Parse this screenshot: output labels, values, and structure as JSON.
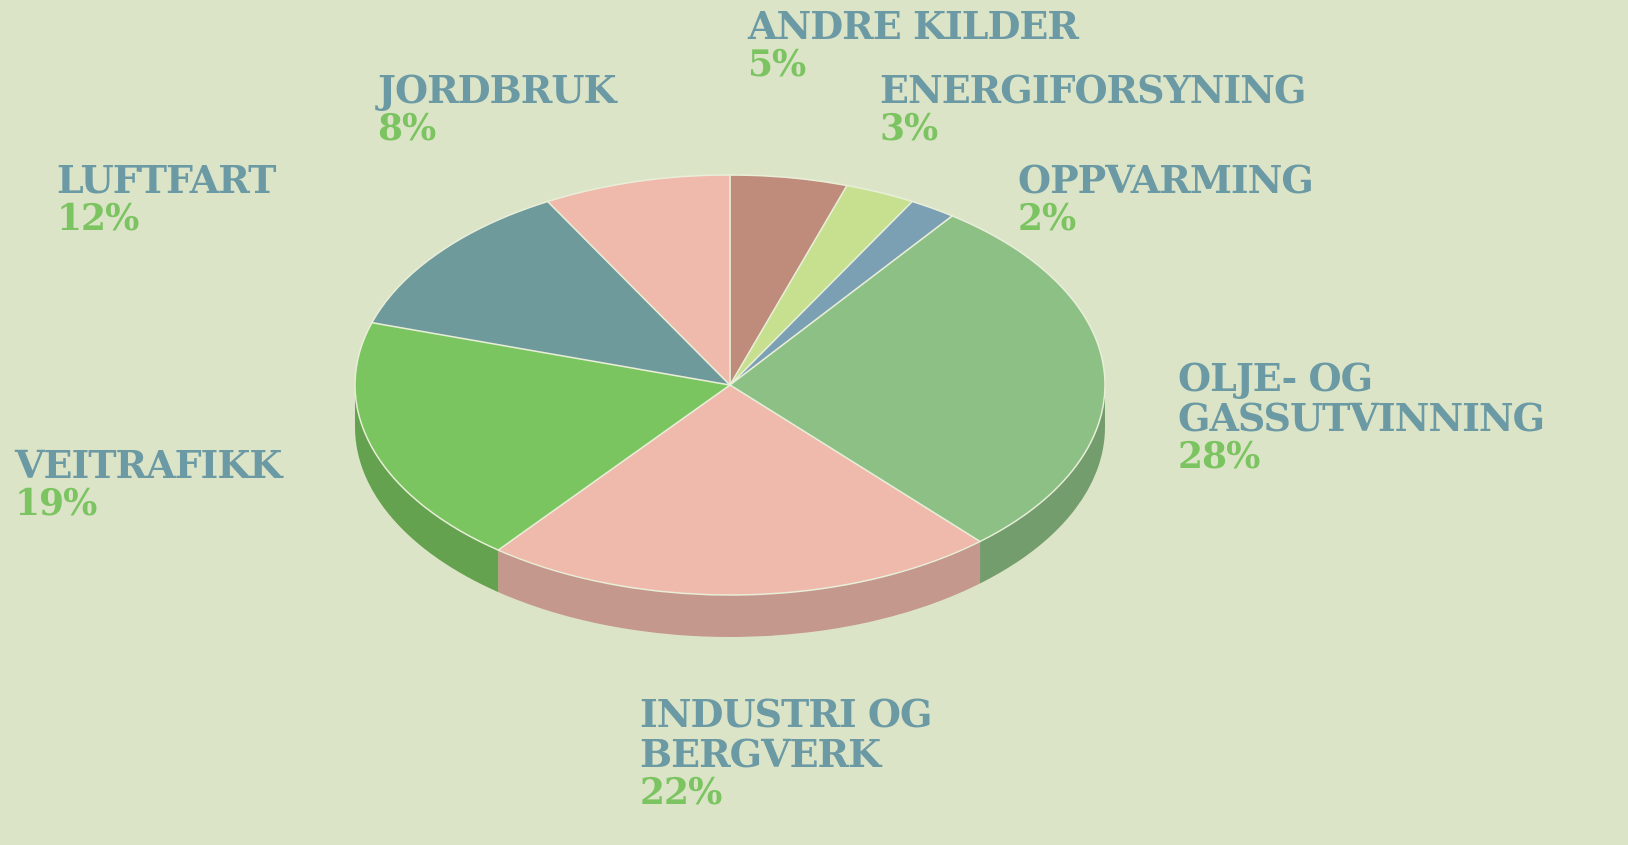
{
  "chart_data": {
    "type": "pie",
    "categories": [
      "ANDRE KILDER",
      "ENERGIFORSYNING",
      "OPPVARMING",
      "OLJE- OG\nGASSUTVINNING",
      "INDUSTRI OG\nBERGVERK",
      "VEITRAFIKK",
      "LUFTFART",
      "JORDBRUK"
    ],
    "values": [
      5,
      3,
      2,
      28,
      22,
      19,
      12,
      8
    ],
    "value_labels": [
      "5%",
      "3%",
      "2%",
      "28%",
      "22%",
      "19%",
      "12%",
      "8%"
    ],
    "colors": [
      "#bf8b7a",
      "#c6e08f",
      "#7b9fb3",
      "#8dc085",
      "#efb9ab",
      "#7bc561",
      "#6f9a9c",
      "#efb9ab"
    ]
  }
}
